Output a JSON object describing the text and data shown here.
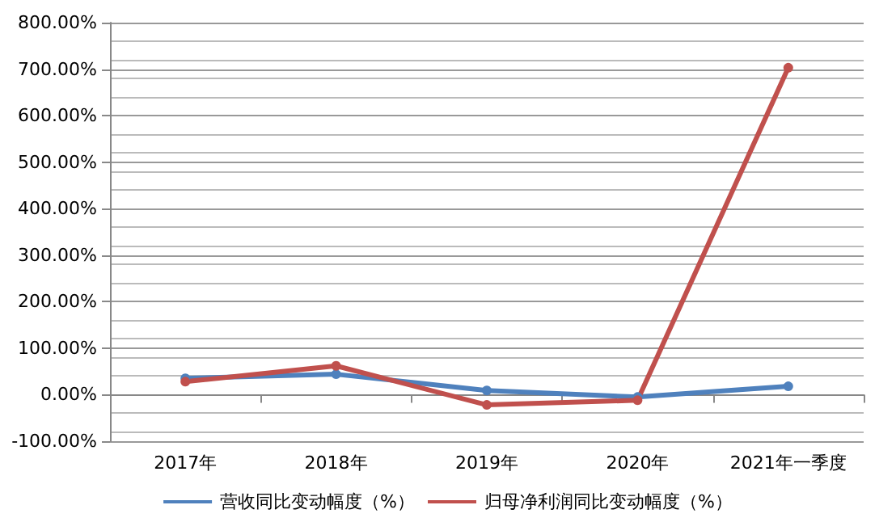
{
  "chart_data": {
    "type": "line",
    "categories": [
      "2017年",
      "2018年",
      "2019年",
      "2020年",
      "2021年一季度"
    ],
    "series": [
      {
        "name": "营收同比变动幅度（%）",
        "color": "#4f81bd",
        "values": [
          35,
          44,
          9,
          -5,
          18
        ]
      },
      {
        "name": "归母净利润同比变动幅度（%）",
        "color": "#c0504d",
        "values": [
          28,
          62,
          -22,
          -12,
          703
        ]
      }
    ],
    "ylim": [
      -100,
      800
    ],
    "yticks": [
      {
        "value": -100,
        "label": "-100.00%"
      },
      {
        "value": 0,
        "label": "0.00%"
      },
      {
        "value": 100,
        "label": "100.00%"
      },
      {
        "value": 200,
        "label": "200.00%"
      },
      {
        "value": 300,
        "label": "300.00%"
      },
      {
        "value": 400,
        "label": "400.00%"
      },
      {
        "value": 500,
        "label": "500.00%"
      },
      {
        "value": 600,
        "label": "600.00%"
      },
      {
        "value": 700,
        "label": "700.00%"
      },
      {
        "value": 800,
        "label": "800.00%"
      }
    ],
    "grid": true,
    "legend": "bottom",
    "marker": "circle",
    "line_style": "solid"
  }
}
